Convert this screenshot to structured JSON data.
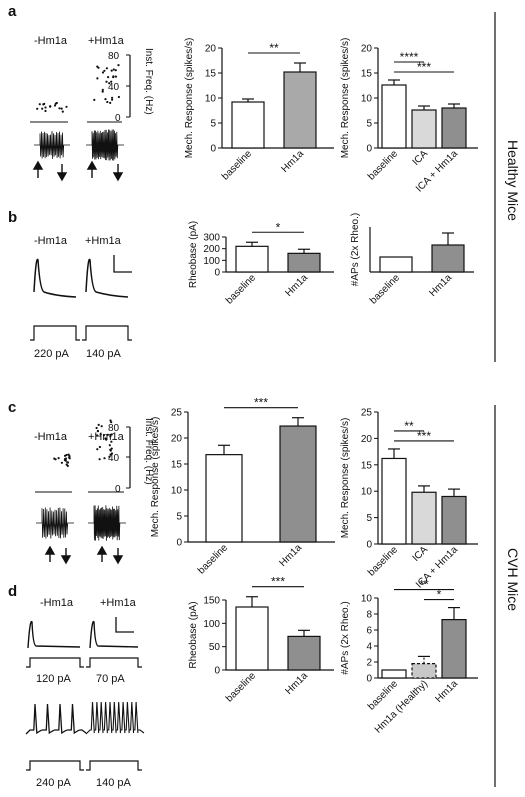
{
  "panels": {
    "a": {
      "letter": "a",
      "conditions": [
        "-Hm1a",
        "+Hm1a"
      ],
      "freq_axis": {
        "label": "Inst. Freq. (Hz)",
        "ticks": [
          "80",
          "40",
          "0"
        ]
      }
    },
    "b": {
      "letter": "b",
      "conditions": [
        "-Hm1a",
        "+Hm1a"
      ],
      "steps": [
        "220 pA",
        "140 pA"
      ]
    },
    "c": {
      "letter": "c",
      "conditions": [
        "-Hm1a",
        "+Hm1a"
      ],
      "freq_axis": {
        "label": "Inst. Freq. (Hz)",
        "ticks": [
          "80",
          "40",
          "0"
        ]
      }
    },
    "d": {
      "letter": "d",
      "conditions": [
        "-Hm1a",
        "+Hm1a"
      ],
      "steps_top": [
        "120 pA",
        "70 pA"
      ],
      "steps_bottom": [
        "240 pA",
        "140 pA"
      ]
    }
  },
  "group_labels": {
    "healthy": "Healthy Mice",
    "cvh": "CVH Mice"
  },
  "chart_data": [
    {
      "id": "a-mid",
      "type": "bar",
      "categories": [
        "baseline",
        "Hm1a"
      ],
      "values": [
        9.2,
        15.2
      ],
      "errors": [
        0.6,
        1.8
      ],
      "colors": [
        "#ffffff",
        "#a9a9a9"
      ],
      "ylabel": "Mech. Response (spikes/s)",
      "ylim": [
        0,
        20
      ],
      "ticks": [
        0,
        5,
        10,
        15,
        20
      ],
      "sig": [
        {
          "from": 0,
          "to": 1,
          "label": "**"
        }
      ]
    },
    {
      "id": "a-right",
      "type": "bar",
      "categories": [
        "baseline",
        "ICA",
        "ICA + Hm1a"
      ],
      "values": [
        12.6,
        7.6,
        8.0
      ],
      "errors": [
        1.0,
        0.8,
        0.8
      ],
      "colors": [
        "#ffffff",
        "#d9d9d9",
        "#8f8f8f"
      ],
      "ylabel": "Mech. Response (spikes/s)",
      "ylim": [
        0,
        20
      ],
      "ticks": [
        0,
        5,
        10,
        15,
        20
      ],
      "sig": [
        {
          "from": 0,
          "to": 1,
          "label": "****"
        },
        {
          "from": 0,
          "to": 2,
          "label": "***"
        }
      ]
    },
    {
      "id": "b-mid",
      "type": "bar",
      "categories": [
        "baseline",
        "Hm1a"
      ],
      "values": [
        220,
        160
      ],
      "errors": [
        35,
        35
      ],
      "colors": [
        "#ffffff",
        "#8f8f8f"
      ],
      "ylabel": "Rheobase (pA)",
      "ylim": [
        0,
        300
      ],
      "ticks": [
        0,
        100,
        200,
        300
      ],
      "sig": [
        {
          "from": 0,
          "to": 1,
          "label": "*"
        }
      ]
    },
    {
      "id": "b-right",
      "type": "bar",
      "categories": [
        "baseline",
        "Hm1a"
      ],
      "values": [
        1.0,
        1.8
      ],
      "errors": [
        0,
        0.8
      ],
      "colors": [
        "#ffffff",
        "#8f8f8f"
      ],
      "ylabel": "#APs (2x Rheo.)",
      "ylim": [
        0,
        3
      ],
      "ticks": [],
      "sig": []
    },
    {
      "id": "c-mid",
      "type": "bar",
      "categories": [
        "baseline",
        "Hm1a"
      ],
      "values": [
        16.8,
        22.3
      ],
      "errors": [
        1.8,
        1.6
      ],
      "colors": [
        "#ffffff",
        "#8f8f8f"
      ],
      "ylabel": "Mech. Response (spikes/s)",
      "ylim": [
        0,
        25
      ],
      "ticks": [
        0,
        5,
        10,
        15,
        20,
        25
      ],
      "sig": [
        {
          "from": 0,
          "to": 1,
          "label": "***"
        }
      ]
    },
    {
      "id": "c-right",
      "type": "bar",
      "categories": [
        "baseline",
        "ICA",
        "ICA + Hm1a"
      ],
      "values": [
        16.2,
        9.8,
        9.0
      ],
      "errors": [
        1.8,
        1.2,
        1.4
      ],
      "colors": [
        "#ffffff",
        "#d9d9d9",
        "#8f8f8f"
      ],
      "ylabel": "Mech. Response (spikes/s)",
      "ylim": [
        0,
        25
      ],
      "ticks": [
        0,
        5,
        10,
        15,
        20,
        25
      ],
      "sig": [
        {
          "from": 0,
          "to": 1,
          "label": "**"
        },
        {
          "from": 0,
          "to": 2,
          "label": "***"
        }
      ]
    },
    {
      "id": "d-mid",
      "type": "bar",
      "categories": [
        "baseline",
        "Hm1a"
      ],
      "values": [
        135,
        72
      ],
      "errors": [
        22,
        13
      ],
      "colors": [
        "#ffffff",
        "#8f8f8f"
      ],
      "ylabel": "Rheobase (pA)",
      "ylim": [
        0,
        150
      ],
      "ticks": [
        0,
        50,
        100,
        150
      ],
      "sig": [
        {
          "from": 0,
          "to": 1,
          "label": "***"
        }
      ]
    },
    {
      "id": "d-right",
      "type": "bar",
      "categories": [
        "baseline",
        "Hm1a (Healthy)",
        "Hm1a"
      ],
      "values": [
        1.0,
        1.8,
        7.3
      ],
      "errors": [
        0,
        0.9,
        1.5
      ],
      "colors": [
        "#ffffff",
        "#c8c8c8",
        "#8f8f8f"
      ],
      "dashed": [
        false,
        true,
        false
      ],
      "ylabel": "#APs (2x Rheo.)",
      "ylim": [
        0,
        10
      ],
      "ticks": [
        0,
        2,
        4,
        6,
        8,
        10
      ],
      "sig": [
        {
          "from": 0,
          "to": 2,
          "label": "**"
        },
        {
          "from": 1,
          "to": 2,
          "label": "*"
        }
      ]
    }
  ]
}
